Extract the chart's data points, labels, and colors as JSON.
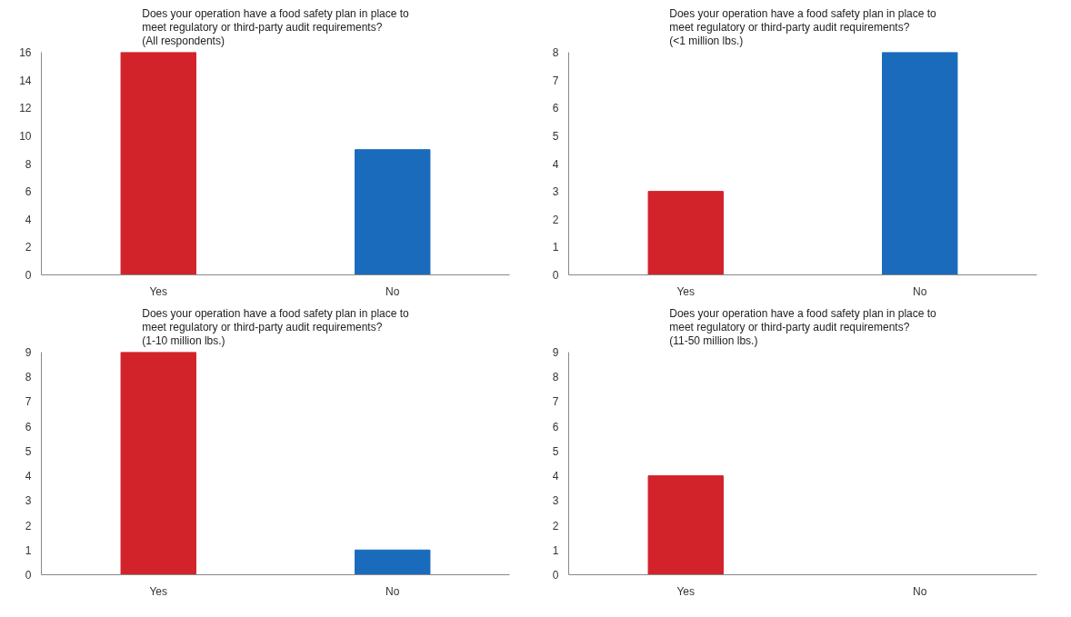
{
  "chart_data": [
    {
      "type": "bar",
      "title": "Does your operation have a food safety plan in place to\nmeet regulatory or third-party audit requirements?\n(All respondents)",
      "categories": [
        "Yes",
        "No"
      ],
      "values": [
        16,
        9
      ],
      "colors": [
        "#d2232a",
        "#1b6bbd"
      ],
      "ylim": [
        0,
        16
      ],
      "yticks": [
        0,
        2,
        4,
        6,
        8,
        10,
        12,
        14,
        16
      ]
    },
    {
      "type": "bar",
      "title": "Does your operation have a food safety plan in place to\nmeet regulatory or third-party audit requirements?\n(<1 million lbs.)",
      "categories": [
        "Yes",
        "No"
      ],
      "values": [
        3,
        8
      ],
      "colors": [
        "#d2232a",
        "#1b6bbd"
      ],
      "ylim": [
        0,
        8
      ],
      "yticks": [
        0,
        1,
        2,
        3,
        4,
        5,
        6,
        7,
        8
      ]
    },
    {
      "type": "bar",
      "title": "Does your operation have a food safety plan in place to\nmeet regulatory or third-party audit requirements?\n(1-10 million lbs.)",
      "categories": [
        "Yes",
        "No"
      ],
      "values": [
        9,
        1
      ],
      "colors": [
        "#d2232a",
        "#1b6bbd"
      ],
      "ylim": [
        0,
        9
      ],
      "yticks": [
        0,
        1,
        2,
        3,
        4,
        5,
        6,
        7,
        8,
        9
      ]
    },
    {
      "type": "bar",
      "title": "Does your operation have a food safety plan in place to\nmeet regulatory or third-party audit requirements?\n(11-50 million lbs.)",
      "categories": [
        "Yes",
        "No"
      ],
      "values": [
        4,
        0
      ],
      "colors": [
        "#d2232a",
        "#1b6bbd"
      ],
      "ylim": [
        0,
        9
      ],
      "yticks": [
        0,
        1,
        2,
        3,
        4,
        5,
        6,
        7,
        8,
        9
      ]
    }
  ]
}
